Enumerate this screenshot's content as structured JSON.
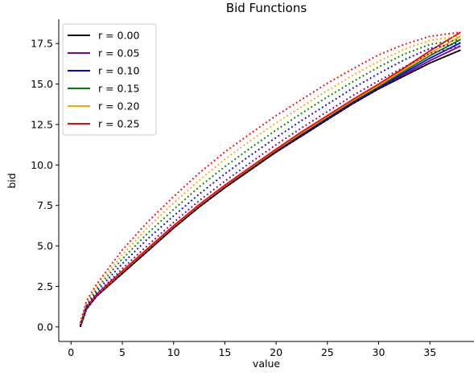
{
  "chart_data": {
    "type": "line",
    "title": "Bid Functions",
    "xlabel": "value",
    "ylabel": "bid",
    "xlim": [
      -1.2,
      39.3
    ],
    "ylim": [
      -0.9,
      19.0
    ],
    "x_ticks": [
      0,
      5,
      10,
      15,
      20,
      25,
      30,
      35
    ],
    "y_ticks": [
      0.0,
      2.5,
      5.0,
      7.5,
      10.0,
      12.5,
      15.0,
      17.5
    ],
    "x_tick_labels": [
      "0",
      "5",
      "10",
      "15",
      "20",
      "25",
      "30",
      "35"
    ],
    "y_tick_labels": [
      "0.0",
      "2.5",
      "5.0",
      "7.5",
      "10.0",
      "12.5",
      "15.0",
      "17.5"
    ],
    "grid": false,
    "legend_position": "top-left",
    "x": [
      0.9,
      1.5,
      2.5,
      5,
      7.5,
      10,
      12.5,
      15,
      17.5,
      20,
      22.5,
      25,
      27.5,
      30,
      32.5,
      35,
      38
    ],
    "series": [
      {
        "name": "r = 0.00",
        "color": "#000000",
        "style": "solid",
        "values": [
          0.0,
          1.1,
          1.9,
          3.3,
          4.7,
          6.1,
          7.4,
          8.6,
          9.7,
          10.8,
          11.8,
          12.8,
          13.8,
          14.7,
          15.5,
          16.3,
          17.1
        ]
      },
      {
        "name": "r = 0.05",
        "color": "#800080",
        "style": "solid",
        "values": [
          0.0,
          1.1,
          1.9,
          3.35,
          4.75,
          6.15,
          7.45,
          8.65,
          9.75,
          10.85,
          11.85,
          12.85,
          13.85,
          14.75,
          15.6,
          16.45,
          17.35
        ]
      },
      {
        "name": "r = 0.10",
        "color": "#0000ff",
        "style": "solid",
        "values": [
          0.05,
          1.15,
          1.95,
          3.38,
          4.78,
          6.18,
          7.48,
          8.68,
          9.8,
          10.9,
          11.9,
          12.9,
          13.9,
          14.8,
          15.7,
          16.6,
          17.55
        ]
      },
      {
        "name": "r = 0.15",
        "color": "#008000",
        "style": "solid",
        "values": [
          0.08,
          1.18,
          1.98,
          3.4,
          4.8,
          6.2,
          7.5,
          8.7,
          9.82,
          10.92,
          11.95,
          12.95,
          13.95,
          14.85,
          15.8,
          16.75,
          17.75
        ]
      },
      {
        "name": "r = 0.20",
        "color": "#ffa500",
        "style": "solid",
        "values": [
          0.1,
          1.2,
          2.0,
          3.42,
          4.82,
          6.22,
          7.52,
          8.72,
          9.85,
          10.95,
          12.0,
          13.0,
          14.0,
          14.92,
          15.9,
          16.9,
          17.95
        ]
      },
      {
        "name": "r = 0.25",
        "color": "#ff0000",
        "style": "solid",
        "values": [
          0.12,
          1.22,
          2.02,
          3.45,
          4.85,
          6.25,
          7.55,
          8.75,
          9.88,
          10.98,
          12.05,
          13.05,
          14.05,
          15.0,
          16.0,
          17.05,
          18.2
        ]
      },
      {
        "color": "#000000",
        "style": "dotted",
        "values": [
          0.0,
          1.1,
          1.9,
          3.3,
          4.7,
          6.1,
          7.4,
          8.6,
          9.7,
          10.8,
          11.8,
          12.8,
          13.8,
          14.7,
          15.5,
          16.3,
          17.1
        ]
      },
      {
        "color": "#800080",
        "style": "dotted",
        "values": [
          0.05,
          1.2,
          2.05,
          3.6,
          5.05,
          6.45,
          7.8,
          9.0,
          10.15,
          11.25,
          12.3,
          13.3,
          14.3,
          15.2,
          16.05,
          16.9,
          17.35
        ]
      },
      {
        "color": "#0000ff",
        "style": "dotted",
        "values": [
          0.1,
          1.3,
          2.2,
          3.9,
          5.45,
          6.85,
          8.2,
          9.45,
          10.6,
          11.7,
          12.75,
          13.75,
          14.75,
          15.65,
          16.5,
          17.2,
          17.55
        ]
      },
      {
        "color": "#008000",
        "style": "dotted",
        "values": [
          0.15,
          1.4,
          2.35,
          4.2,
          5.8,
          7.25,
          8.65,
          9.9,
          11.05,
          12.15,
          13.2,
          14.2,
          15.15,
          16.05,
          16.85,
          17.45,
          17.75
        ]
      },
      {
        "color": "#ffa500",
        "style": "dotted",
        "values": [
          0.2,
          1.5,
          2.5,
          4.45,
          6.15,
          7.65,
          9.05,
          10.35,
          11.5,
          12.6,
          13.6,
          14.6,
          15.55,
          16.4,
          17.15,
          17.7,
          17.95
        ]
      },
      {
        "color": "#ff0000",
        "style": "dotted",
        "values": [
          0.25,
          1.6,
          2.65,
          4.75,
          6.5,
          8.05,
          9.5,
          10.8,
          11.95,
          13.05,
          14.05,
          15.05,
          15.95,
          16.8,
          17.45,
          17.95,
          18.2
        ]
      }
    ]
  }
}
